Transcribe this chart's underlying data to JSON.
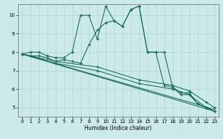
{
  "xlabel": "Humidex (Indice chaleur)",
  "bg_color": "#cceaea",
  "line_color": "#1a6b5a",
  "grid_color": "#add4d4",
  "xlim": [
    -0.5,
    23.5
  ],
  "ylim": [
    4.5,
    10.6
  ],
  "yticks": [
    5,
    6,
    7,
    8,
    9,
    10
  ],
  "xticks": [
    0,
    1,
    2,
    3,
    4,
    5,
    6,
    7,
    8,
    9,
    10,
    11,
    12,
    13,
    14,
    15,
    16,
    17,
    18,
    19,
    20,
    21,
    22,
    23
  ],
  "series1_x": [
    0,
    1,
    2,
    3,
    4,
    5,
    6,
    7,
    8,
    9,
    10,
    11,
    12,
    13,
    14,
    15,
    16,
    17,
    18,
    19,
    20,
    21,
    22,
    23
  ],
  "series1_y": [
    7.9,
    8.0,
    8.0,
    7.8,
    7.7,
    7.7,
    8.0,
    10.0,
    10.0,
    8.7,
    10.5,
    9.7,
    9.4,
    10.3,
    10.5,
    8.0,
    8.0,
    6.2,
    6.1,
    5.8,
    5.8,
    5.2,
    5.0,
    4.8
  ],
  "series2_x": [
    0,
    1,
    2,
    3,
    4,
    5,
    6,
    7,
    8,
    9,
    10,
    11,
    12,
    13,
    14,
    15,
    16,
    17,
    18,
    19,
    20,
    21,
    22,
    23
  ],
  "series2_y": [
    7.9,
    7.8,
    7.8,
    7.7,
    7.5,
    7.6,
    7.5,
    7.4,
    8.4,
    9.2,
    9.6,
    9.7,
    9.4,
    10.3,
    10.5,
    8.0,
    8.0,
    8.0,
    6.1,
    5.7,
    5.7,
    5.2,
    5.0,
    4.8
  ],
  "series3_x": [
    0,
    23
  ],
  "series3_y": [
    7.9,
    4.9
  ],
  "series4_x": [
    0,
    23
  ],
  "series4_y": [
    7.9,
    4.8
  ],
  "series5_x": [
    0,
    4,
    9,
    14,
    18,
    20,
    22,
    23
  ],
  "series5_y": [
    7.9,
    7.5,
    7.2,
    6.5,
    6.2,
    5.9,
    5.3,
    5.0
  ],
  "series6_x": [
    0,
    4,
    9,
    14,
    18,
    20,
    22,
    23
  ],
  "series6_y": [
    7.9,
    7.4,
    7.0,
    6.3,
    6.0,
    5.7,
    5.0,
    4.8
  ]
}
